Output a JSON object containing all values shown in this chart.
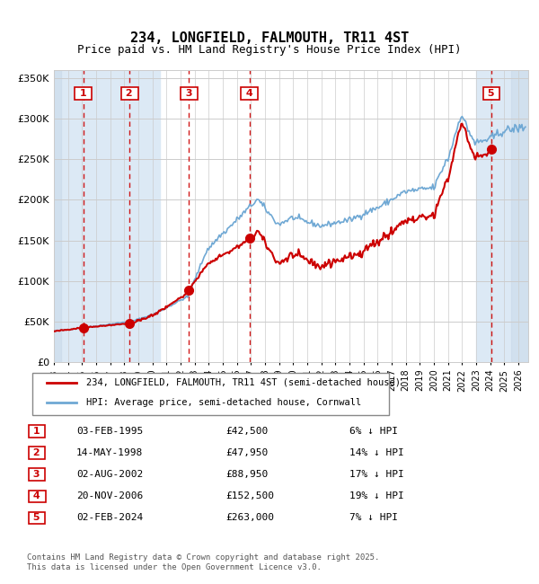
{
  "title": "234, LONGFIELD, FALMOUTH, TR11 4ST",
  "subtitle": "Price paid vs. HM Land Registry's House Price Index (HPI)",
  "hpi_label": "HPI: Average price, semi-detached house, Cornwall",
  "property_label": "234, LONGFIELD, FALMOUTH, TR11 4ST (semi-detached house)",
  "hpi_color": "#6fa8d4",
  "property_color": "#cc0000",
  "dot_color": "#cc0000",
  "bg_color": "#ffffff",
  "plot_bg": "#ffffff",
  "band_color": "#dce9f5",
  "grid_color": "#cccccc",
  "dashed_color": "#cc0000",
  "ylim": [
    0,
    360000
  ],
  "yticks": [
    0,
    50000,
    100000,
    150000,
    200000,
    250000,
    300000,
    350000
  ],
  "ytick_labels": [
    "£0",
    "£50K",
    "£100K",
    "£150K",
    "£200K",
    "£250K",
    "£300K",
    "£350K"
  ],
  "footer": "Contains HM Land Registry data © Crown copyright and database right 2025.\nThis data is licensed under the Open Government Licence v3.0.",
  "sales": [
    {
      "num": 1,
      "date": "1995-02-03",
      "price": 42500,
      "pct": "6%",
      "label": "03-FEB-1995",
      "price_str": "£42,500"
    },
    {
      "num": 2,
      "date": "1998-05-14",
      "price": 47950,
      "pct": "14%",
      "label": "14-MAY-1998",
      "price_str": "£47,950"
    },
    {
      "num": 3,
      "date": "2002-08-02",
      "price": 88950,
      "pct": "17%",
      "label": "02-AUG-2002",
      "price_str": "£88,950"
    },
    {
      "num": 4,
      "date": "2006-11-20",
      "price": 152500,
      "pct": "19%",
      "label": "20-NOV-2006",
      "price_str": "£152,500"
    },
    {
      "num": 5,
      "date": "2024-02-02",
      "price": 263000,
      "pct": "7%",
      "label": "02-FEB-2024",
      "price_str": "£263,000"
    }
  ]
}
